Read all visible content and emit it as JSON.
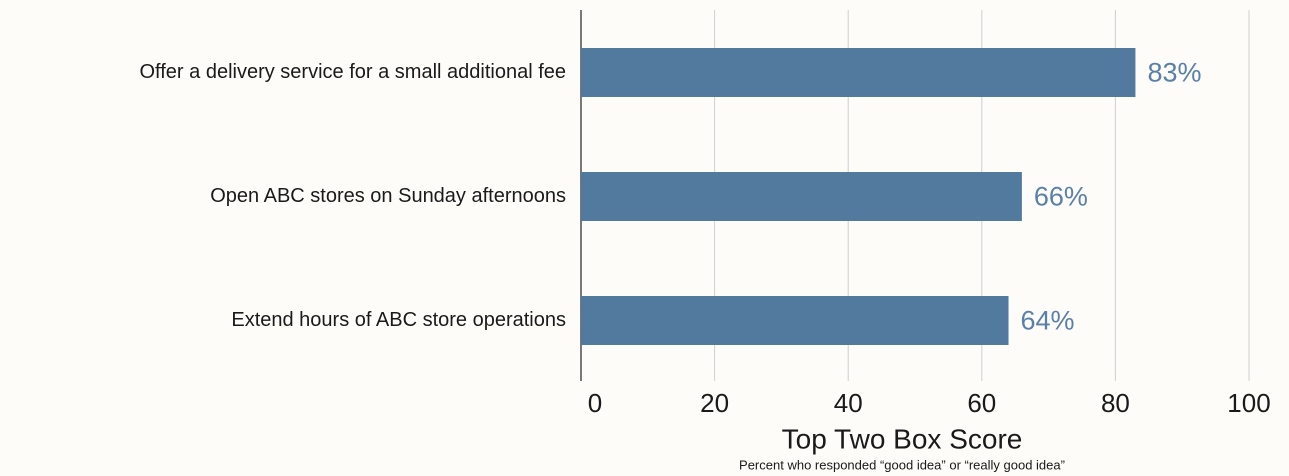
{
  "chart_data": {
    "type": "bar",
    "orientation": "horizontal",
    "categories": [
      "Offer a delivery service for a small additional fee",
      "Open ABC stores on Sunday afternoons",
      "Extend hours of ABC store operations"
    ],
    "values": [
      83,
      66,
      64
    ],
    "value_labels": [
      "83%",
      "66%",
      "64%"
    ],
    "color": "#52799e",
    "xlim": [
      0,
      100
    ],
    "xticks": [
      0,
      20,
      40,
      60,
      80,
      100
    ],
    "grid": true,
    "x_label": "Top Two Box Score",
    "x_label_note": "Percent who responded “good idea” or “really good idea”"
  }
}
